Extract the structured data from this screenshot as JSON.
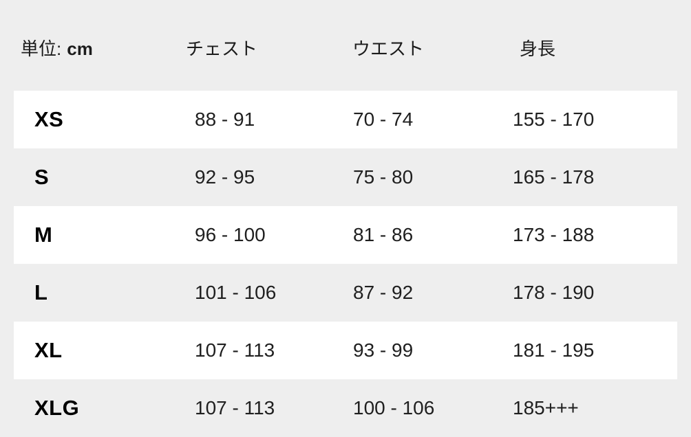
{
  "table": {
    "unit_prefix": "単位:",
    "unit_value": "cm",
    "columns": {
      "chest": "チェスト",
      "waist": "ウエスト",
      "height": "身長"
    },
    "rows": [
      {
        "size": "XS",
        "chest": "88 - 91",
        "waist": "70 - 74",
        "height": "155 - 170"
      },
      {
        "size": "S",
        "chest": "92 - 95",
        "waist": "75 - 80",
        "height": "165 - 178"
      },
      {
        "size": "M",
        "chest": "96 - 100",
        "waist": "81 - 86",
        "height": "173 - 188"
      },
      {
        "size": "L",
        "chest": "101 - 106",
        "waist": "87 - 92",
        "height": "178 - 190"
      },
      {
        "size": "XL",
        "chest": "107 - 113",
        "waist": "93 - 99",
        "height": "181 - 195"
      },
      {
        "size": "XLG",
        "chest": "107 - 113",
        "waist": "100 - 106",
        "height": "185+++"
      }
    ],
    "colors": {
      "page_background": "#eeeeee",
      "row_highlight": "#ffffff",
      "text": "#1f1f1f"
    }
  }
}
